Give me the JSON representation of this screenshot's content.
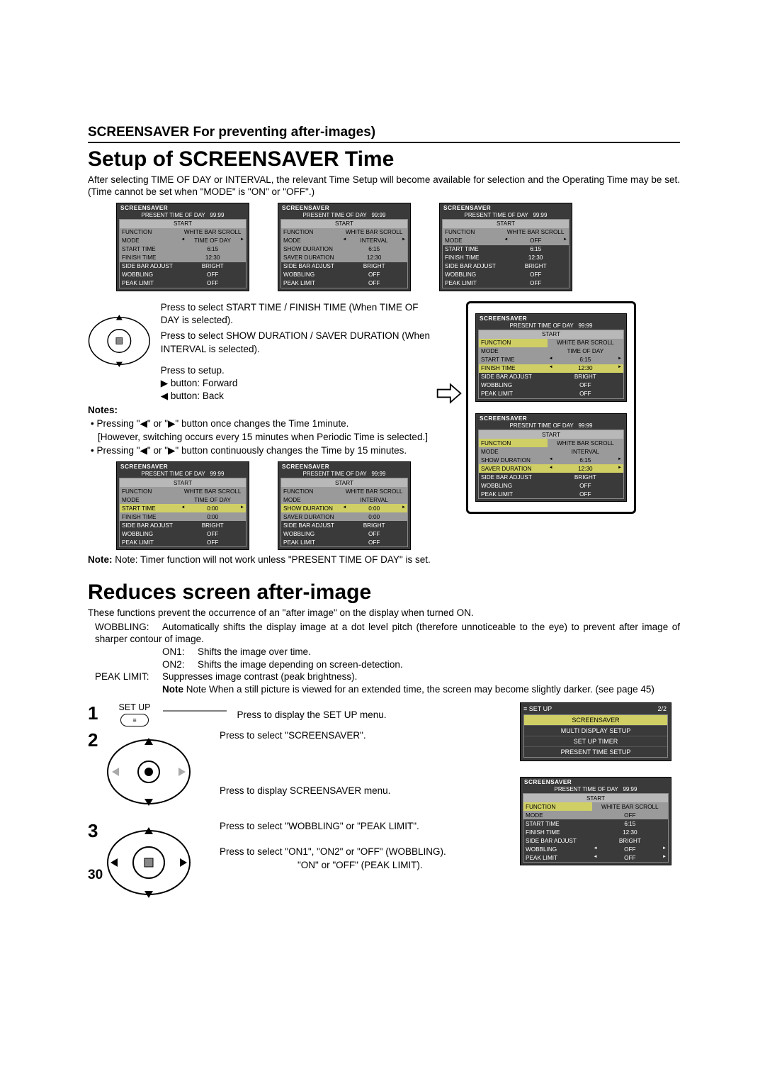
{
  "page_number": "30",
  "section_header": "SCREENSAVER For preventing after-images)",
  "setup": {
    "title": "Setup of SCREENSAVER Time",
    "intro": "After selecting TIME OF DAY or INTERVAL, the relevant Time Setup will become available for selection and the Operating Time may be set. (Time cannot be set when \"MODE\" is \"ON\" or \"OFF\".)",
    "instr_time": "Press to select START TIME / FINISH TIME (When TIME OF DAY is selected).",
    "instr_dur": "Press to select SHOW DURATION / SAVER DURATION (When INTERVAL is selected).",
    "instr_setup": "Press to setup.",
    "btn_fwd": "▶ button: Forward",
    "btn_back": "◀ button: Back",
    "notes_label": "Notes:",
    "note1": "• Pressing \"◀\" or \"▶\" button once changes the Time 1minute.",
    "note1b": "[However, switching occurs every 15 minutes when Periodic Time is selected.]",
    "note2": "• Pressing \"◀\" or \"▶\" button continuously changes the Time by 15 minutes.",
    "note_timer": "Note: Timer function will not work unless \"PRESENT TIME OF DAY\" is set."
  },
  "reduce": {
    "title": "Reduces screen after-image",
    "intro": "These functions prevent the occurrence of an \"after image\" on the display when turned ON.",
    "wobbling_label": "WOBBLING:",
    "wobbling_desc": "Automatically shifts the display image at a dot level pitch (therefore unnoticeable to the eye) to prevent after image of sharper contour of image.",
    "on1_label": "ON1:",
    "on1_desc": "Shifts the image over time.",
    "on2_label": "ON2:",
    "on2_desc": "Shifts the image depending on screen-detection.",
    "peak_label": "PEAK LIMIT:",
    "peak_desc": "Suppresses image contrast (peak brightness).",
    "peak_note": "Note When a still picture is viewed for an extended time, the screen may become slightly darker. (see page 45)",
    "setup_btn_label": "SET UP",
    "step1": "Press to display the SET UP menu.",
    "step2": "Press to select \"SCREENSAVER\".",
    "step2b": "Press to display SCREENSAVER menu.",
    "step3a": "Press to select \"WOBBLING\" or \"PEAK LIMIT\".",
    "step3b": "Press to select \"ON1\", \"ON2\" or \"OFF\" (WOBBLING).",
    "step3c": "\"ON\" or \"OFF\" (PEAK LIMIT)."
  },
  "osd_common": {
    "title": "SCREENSAVER",
    "ptod_label": "PRESENT  TIME OF DAY",
    "ptod_val": "99:99",
    "start": "START",
    "function": "FUNCTION",
    "function_val": "WHITE BAR SCROLL",
    "mode": "MODE",
    "sidebar": "SIDE BAR ADJUST",
    "sidebar_val": "BRIGHT",
    "wobbling": "WOBBLING",
    "wobbling_val": "OFF",
    "peak": "PEAK LIMIT",
    "peak_val": "OFF"
  },
  "osd_top1": {
    "mode_val": "TIME OF DAY",
    "r1": "START TIME",
    "r1v": "6:15",
    "r2": "FINISH TIME",
    "r2v": "12:30"
  },
  "osd_top2": {
    "mode_val": "INTERVAL",
    "r1": "SHOW DURATION",
    "r1v": "6:15",
    "r2": "SAVER DURATION",
    "r2v": "12:30"
  },
  "osd_top3": {
    "mode_val": "OFF",
    "r1": "START TIME",
    "r1v": "6:15",
    "r2": "FINISH TIME",
    "r2v": "12:30"
  },
  "osd_mid1": {
    "mode_val": "TIME OF DAY",
    "r1": "START TIME",
    "r1v": "0:00",
    "r2": "FINISH TIME",
    "r2v": "0:00"
  },
  "osd_mid2": {
    "mode_val": "INTERVAL",
    "r1": "SHOW DURATION",
    "r1v": "0:00",
    "r2": "SAVER DURATION",
    "r2v": "0:00"
  },
  "osd_right1": {
    "mode_val": "TIME OF DAY",
    "r1": "START TIME",
    "r1v": "6:15",
    "r2": "FINISH TIME",
    "r2v": "12:30"
  },
  "osd_right2": {
    "mode_val": "INTERVAL",
    "r1": "SHOW DURATION",
    "r1v": "6:15",
    "r2": "SAVER DURATION",
    "r2v": "12:30"
  },
  "setup_osd": {
    "title": "SET UP",
    "page": "2/2",
    "items": [
      "SCREENSAVER",
      "MULTI DISPLAY SETUP",
      "SET UP TIMER",
      "PRESENT TIME SETUP"
    ]
  },
  "osd_bottom": {
    "mode_val": "OFF",
    "r1": "START TIME",
    "r1v": "6:15",
    "r2": "FINISH TIME",
    "r2v": "12:30"
  }
}
